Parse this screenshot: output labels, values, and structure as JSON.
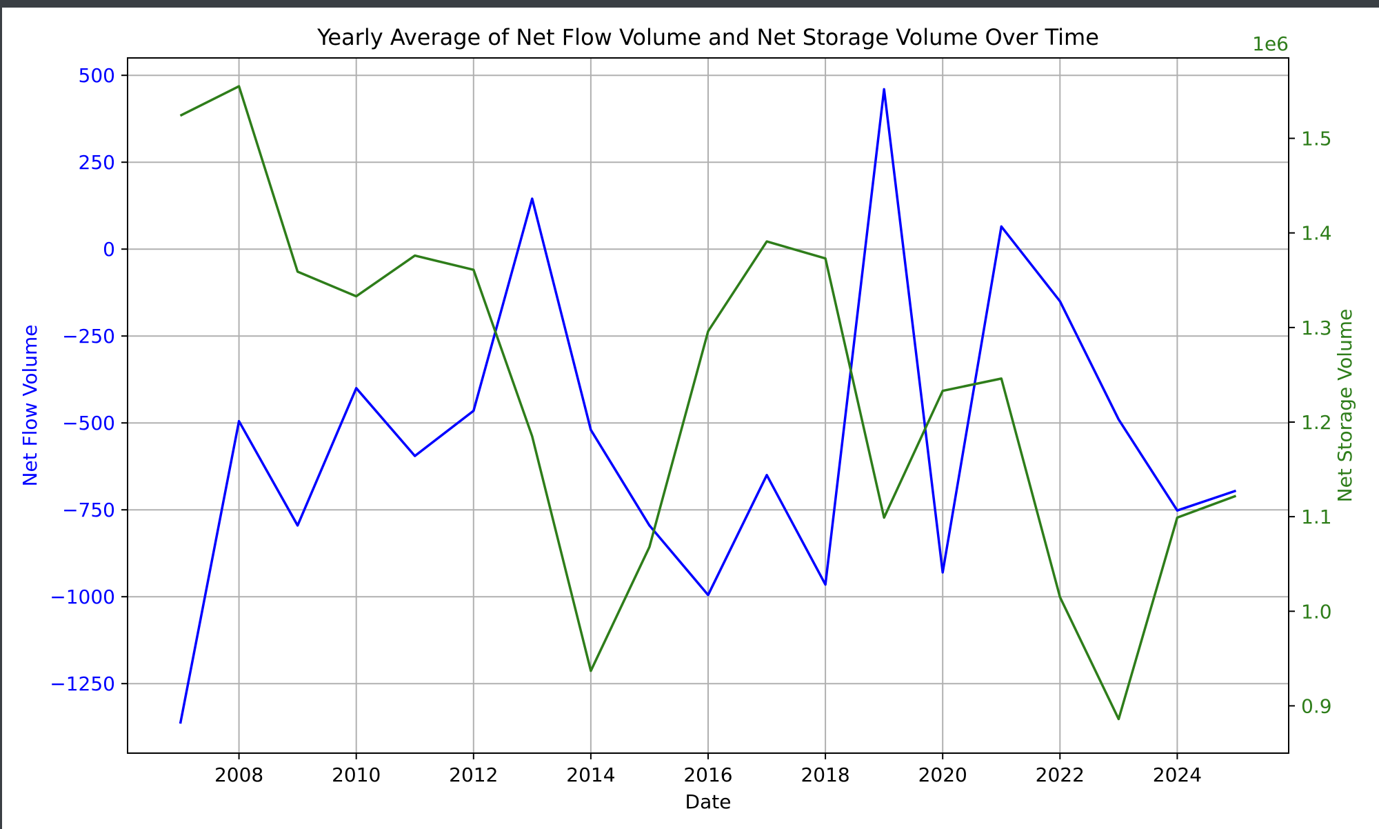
{
  "chart_data": {
    "type": "line",
    "title": "Yearly Average of Net Flow Volume and Net Storage Volume Over Time",
    "xlabel": "Date",
    "x": [
      2007,
      2008,
      2009,
      2010,
      2011,
      2012,
      2013,
      2014,
      2015,
      2016,
      2017,
      2018,
      2019,
      2020,
      2021,
      2022,
      2023,
      2024,
      2025
    ],
    "x_ticks": [
      "2008",
      "2010",
      "2012",
      "2014",
      "2016",
      "2018",
      "2020",
      "2022",
      "2024"
    ],
    "xlim": [
      2006.1,
      2025.9
    ],
    "grid": true,
    "left_axis": {
      "label": "Net Flow Volume",
      "color": "#0000ff",
      "ylim": [
        -1450,
        550
      ],
      "ticks": [
        500,
        250,
        0,
        -250,
        -500,
        -750,
        -1000,
        -1250
      ],
      "tick_labels": [
        "500",
        "250",
        "0",
        "−250",
        "−500",
        "−750",
        "−1000",
        "−1250"
      ]
    },
    "right_axis": {
      "label": "Net Storage Volume",
      "color": "#2e7d1a",
      "offset_label": "1e6",
      "ylim": [
        0.85,
        1.585
      ],
      "ticks": [
        0.9,
        1.0,
        1.1,
        1.2,
        1.3,
        1.4,
        1.5
      ],
      "tick_labels": [
        "0.9",
        "1.0",
        "1.1",
        "1.2",
        "1.3",
        "1.4",
        "1.5"
      ]
    },
    "series": [
      {
        "axis": "left",
        "color": "#0000ff",
        "values": [
          -1365,
          -495,
          -795,
          -400,
          -595,
          -465,
          145,
          -520,
          -795,
          -995,
          -650,
          -965,
          460,
          -930,
          65,
          -150,
          -490,
          -752,
          -695
        ]
      },
      {
        "axis": "right",
        "color": "#2e7d1a",
        "values": [
          1.524,
          1.555,
          1.359,
          1.333,
          1.376,
          1.361,
          1.185,
          0.937,
          1.068,
          1.296,
          1.391,
          1.373,
          1.099,
          1.233,
          1.246,
          1.015,
          0.886,
          1.099,
          1.122
        ]
      }
    ]
  }
}
